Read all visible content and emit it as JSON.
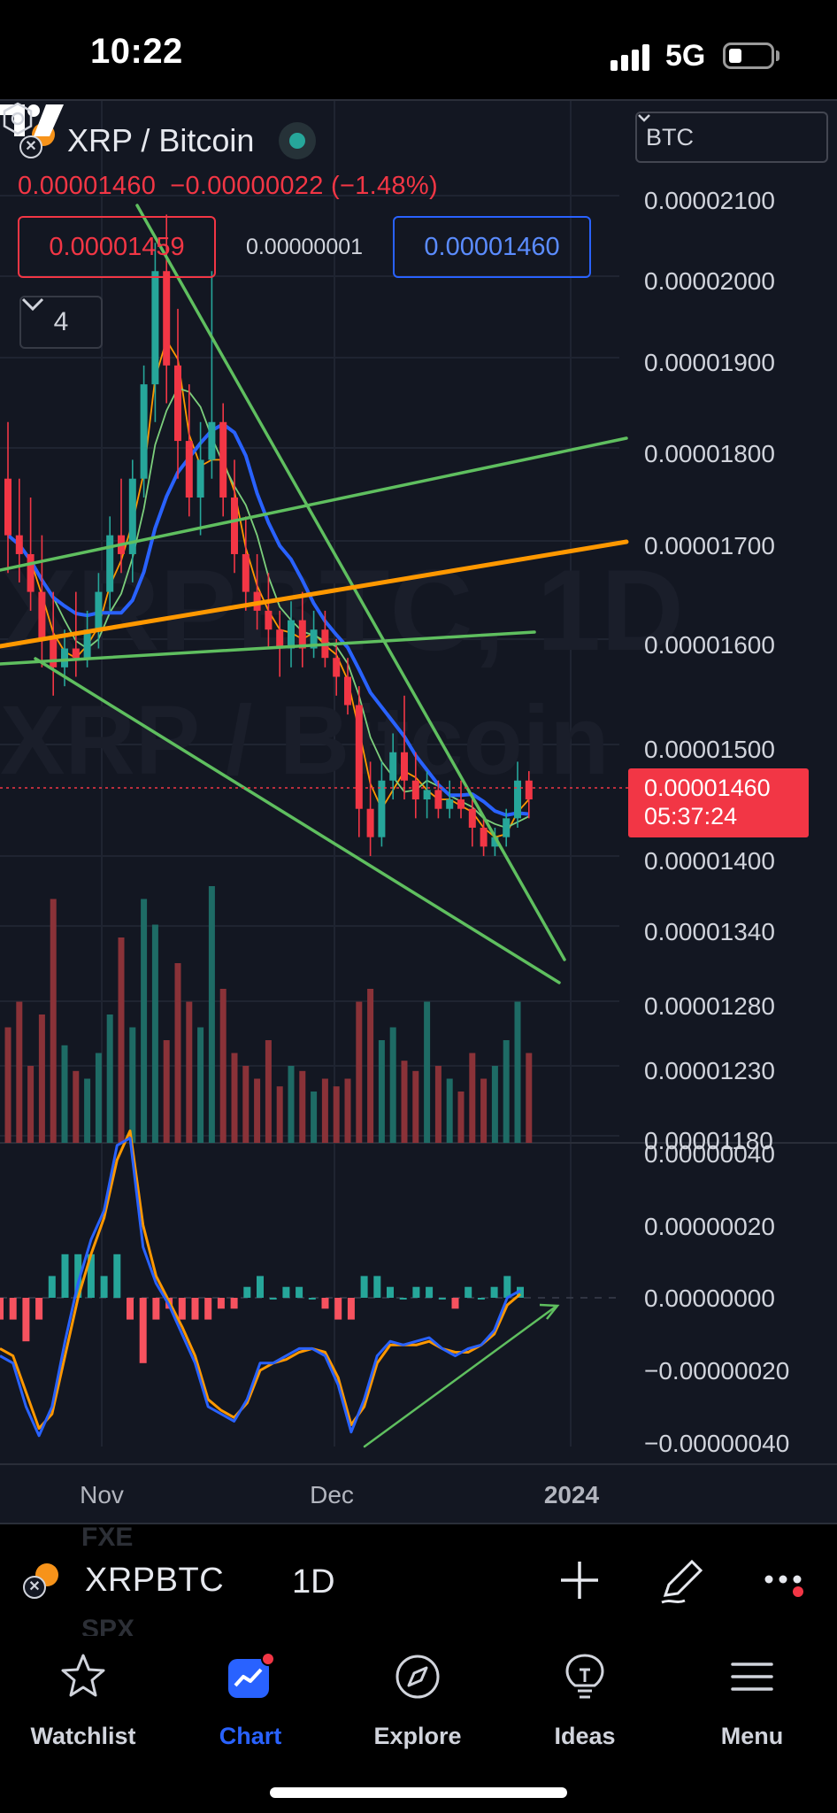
{
  "status_bar": {
    "time": "10:22",
    "network": "5G",
    "battery_percent": 25
  },
  "header": {
    "base_symbol_glyph": "✕",
    "symbol_title": "XRP / Bitcoin",
    "last_price": "0.00001460",
    "change": "−0.00000022 (−1.48%)",
    "sell_price": "0.00001459",
    "spread": "0.00000001",
    "buy_price": "0.00001460",
    "indicators_count": "4",
    "currency": "BTC"
  },
  "watermark": {
    "line1": "XRPBTC, 1D",
    "line2": "XRP / Bitcoin"
  },
  "price_scale": {
    "main": [
      "0.00002100",
      "0.00002000",
      "0.00001900",
      "0.00001800",
      "0.00001700",
      "0.00001600",
      "0.00001500",
      "0.00001400",
      "0.00001340",
      "0.00001280",
      "0.00001230",
      "0.00001180"
    ],
    "oscillator": [
      "0.00000040",
      "0.00000020",
      "0.00000000",
      "−0.00000020",
      "−0.00000040"
    ]
  },
  "current_price_tag": {
    "price": "0.00001460",
    "countdown": "05:37:24"
  },
  "time_axis": [
    "Nov",
    "Dec",
    "2024"
  ],
  "colors": {
    "up": "#26a69a",
    "down": "#f23645",
    "ma_blue": "#2962ff",
    "trend_green": "#5fbf5f",
    "trend_orange": "#ff9800",
    "accent": "#2962ff"
  },
  "chart_data": {
    "type": "candlestick",
    "symbol": "XRPBTC",
    "interval": "1D",
    "ylim": [
      1.18e-05,
      2.15e-05
    ],
    "current_price": 1.46e-05,
    "candles": [
      {
        "o": 1.8,
        "h": 1.86,
        "l": 1.7,
        "c": 1.74
      },
      {
        "o": 1.74,
        "h": 1.8,
        "l": 1.69,
        "c": 1.72
      },
      {
        "o": 1.72,
        "h": 1.78,
        "l": 1.66,
        "c": 1.68
      },
      {
        "o": 1.68,
        "h": 1.74,
        "l": 1.6,
        "c": 1.63
      },
      {
        "o": 1.63,
        "h": 1.68,
        "l": 1.57,
        "c": 1.6
      },
      {
        "o": 1.6,
        "h": 1.64,
        "l": 1.58,
        "c": 1.62
      },
      {
        "o": 1.62,
        "h": 1.68,
        "l": 1.59,
        "c": 1.61
      },
      {
        "o": 1.61,
        "h": 1.66,
        "l": 1.6,
        "c": 1.64
      },
      {
        "o": 1.64,
        "h": 1.7,
        "l": 1.62,
        "c": 1.68
      },
      {
        "o": 1.68,
        "h": 1.76,
        "l": 1.66,
        "c": 1.74
      },
      {
        "o": 1.74,
        "h": 1.8,
        "l": 1.7,
        "c": 1.72
      },
      {
        "o": 1.72,
        "h": 1.82,
        "l": 1.69,
        "c": 1.8
      },
      {
        "o": 1.8,
        "h": 1.92,
        "l": 1.78,
        "c": 1.9
      },
      {
        "o": 1.9,
        "h": 2.05,
        "l": 1.86,
        "c": 2.02
      },
      {
        "o": 2.02,
        "h": 2.08,
        "l": 1.88,
        "c": 1.92
      },
      {
        "o": 1.92,
        "h": 1.98,
        "l": 1.8,
        "c": 1.84
      },
      {
        "o": 1.84,
        "h": 1.9,
        "l": 1.76,
        "c": 1.78
      },
      {
        "o": 1.78,
        "h": 1.86,
        "l": 1.74,
        "c": 1.82
      },
      {
        "o": 1.82,
        "h": 2.02,
        "l": 1.8,
        "c": 1.86
      },
      {
        "o": 1.86,
        "h": 1.88,
        "l": 1.76,
        "c": 1.78
      },
      {
        "o": 1.78,
        "h": 1.82,
        "l": 1.7,
        "c": 1.72
      },
      {
        "o": 1.72,
        "h": 1.76,
        "l": 1.66,
        "c": 1.68
      },
      {
        "o": 1.68,
        "h": 1.72,
        "l": 1.64,
        "c": 1.66
      },
      {
        "o": 1.66,
        "h": 1.7,
        "l": 1.62,
        "c": 1.64
      },
      {
        "o": 1.64,
        "h": 1.66,
        "l": 1.59,
        "c": 1.62
      },
      {
        "o": 1.62,
        "h": 1.67,
        "l": 1.6,
        "c": 1.65
      },
      {
        "o": 1.65,
        "h": 1.68,
        "l": 1.6,
        "c": 1.62
      },
      {
        "o": 1.62,
        "h": 1.66,
        "l": 1.61,
        "c": 1.64
      },
      {
        "o": 1.64,
        "h": 1.66,
        "l": 1.6,
        "c": 1.61
      },
      {
        "o": 1.61,
        "h": 1.63,
        "l": 1.57,
        "c": 1.59
      },
      {
        "o": 1.59,
        "h": 1.61,
        "l": 1.55,
        "c": 1.56
      },
      {
        "o": 1.56,
        "h": 1.58,
        "l": 1.42,
        "c": 1.45
      },
      {
        "o": 1.45,
        "h": 1.5,
        "l": 1.4,
        "c": 1.42
      },
      {
        "o": 1.42,
        "h": 1.5,
        "l": 1.41,
        "c": 1.48
      },
      {
        "o": 1.48,
        "h": 1.53,
        "l": 1.46,
        "c": 1.51
      },
      {
        "o": 1.51,
        "h": 1.57,
        "l": 1.46,
        "c": 1.48
      },
      {
        "o": 1.48,
        "h": 1.51,
        "l": 1.44,
        "c": 1.46
      },
      {
        "o": 1.46,
        "h": 1.49,
        "l": 1.44,
        "c": 1.47
      },
      {
        "o": 1.47,
        "h": 1.48,
        "l": 1.44,
        "c": 1.45
      },
      {
        "o": 1.45,
        "h": 1.48,
        "l": 1.44,
        "c": 1.46
      },
      {
        "o": 1.46,
        "h": 1.48,
        "l": 1.44,
        "c": 1.45
      },
      {
        "o": 1.45,
        "h": 1.46,
        "l": 1.41,
        "c": 1.43
      },
      {
        "o": 1.43,
        "h": 1.44,
        "l": 1.4,
        "c": 1.41
      },
      {
        "o": 1.41,
        "h": 1.43,
        "l": 1.4,
        "c": 1.42
      },
      {
        "o": 1.42,
        "h": 1.45,
        "l": 1.41,
        "c": 1.44
      },
      {
        "o": 1.44,
        "h": 1.5,
        "l": 1.43,
        "c": 1.48
      },
      {
        "o": 1.48,
        "h": 1.49,
        "l": 1.44,
        "c": 1.46
      }
    ],
    "volume": [
      0.45,
      0.55,
      0.3,
      0.5,
      0.95,
      0.38,
      0.28,
      0.25,
      0.35,
      0.5,
      0.8,
      0.45,
      0.95,
      0.85,
      0.4,
      0.7,
      0.55,
      0.45,
      1.0,
      0.6,
      0.35,
      0.3,
      0.25,
      0.4,
      0.22,
      0.3,
      0.28,
      0.2,
      0.25,
      0.22,
      0.25,
      0.55,
      0.6,
      0.4,
      0.45,
      0.32,
      0.28,
      0.55,
      0.3,
      0.25,
      0.2,
      0.35,
      0.25,
      0.3,
      0.4,
      0.55,
      0.35
    ],
    "oscillator": {
      "ylim": [
        -4e-07,
        4e-07
      ],
      "macd": [
        -0.16,
        -0.18,
        -0.3,
        -0.38,
        -0.3,
        -0.12,
        0.04,
        0.16,
        0.24,
        0.42,
        0.44,
        0.14,
        0.04,
        -0.02,
        -0.1,
        -0.18,
        -0.3,
        -0.32,
        -0.34,
        -0.28,
        -0.18,
        -0.18,
        -0.16,
        -0.14,
        -0.14,
        -0.16,
        -0.24,
        -0.37,
        -0.28,
        -0.16,
        -0.12,
        -0.13,
        -0.12,
        -0.11,
        -0.14,
        -0.16,
        -0.14,
        -0.13,
        -0.09,
        0.0,
        0.02
      ],
      "signal": [
        -0.14,
        -0.16,
        -0.26,
        -0.36,
        -0.32,
        -0.16,
        0.0,
        0.12,
        0.22,
        0.38,
        0.46,
        0.2,
        0.06,
        -0.01,
        -0.08,
        -0.16,
        -0.28,
        -0.31,
        -0.33,
        -0.29,
        -0.2,
        -0.18,
        -0.17,
        -0.15,
        -0.14,
        -0.15,
        -0.22,
        -0.35,
        -0.3,
        -0.18,
        -0.13,
        -0.13,
        -0.13,
        -0.12,
        -0.14,
        -0.15,
        -0.15,
        -0.13,
        -0.1,
        -0.02,
        0.01
      ]
    }
  },
  "bottom_bar": {
    "ghost_top": "FXE",
    "ghost_bottom": "SPX",
    "symbol": "XRPBTC",
    "interval": "1D"
  },
  "tabs": [
    {
      "label": "Watchlist",
      "icon": "star-icon",
      "active": false
    },
    {
      "label": "Chart",
      "icon": "chart-icon",
      "active": true
    },
    {
      "label": "Explore",
      "icon": "compass-icon",
      "active": false
    },
    {
      "label": "Ideas",
      "icon": "lightbulb-icon",
      "active": false
    },
    {
      "label": "Menu",
      "icon": "menu-icon",
      "active": false
    }
  ]
}
